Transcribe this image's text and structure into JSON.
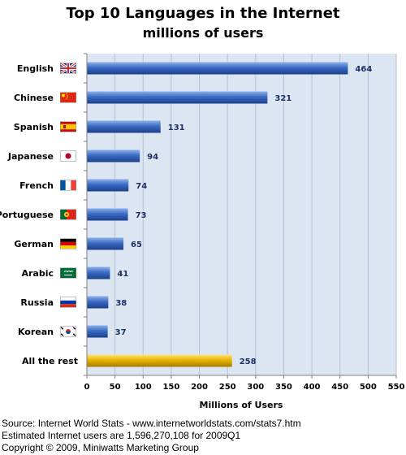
{
  "chart_data": {
    "type": "bar",
    "orientation": "horizontal",
    "title": "Top 10 Languages in the Internet",
    "subtitle": "millions of users",
    "xlabel": "Millions of Users",
    "ylabel": "",
    "xlim": [
      0,
      550
    ],
    "x_ticks": [
      "0",
      "50",
      "100",
      "150",
      "200",
      "250",
      "300",
      "350",
      "400",
      "450",
      "500",
      "550"
    ],
    "grid": true,
    "categories": [
      "English",
      "Chinese",
      "Spanish",
      "Japanese",
      "French",
      "Portuguese",
      "German",
      "Arabic",
      "Russia",
      "Korean",
      "All the rest"
    ],
    "values": [
      464,
      321,
      131,
      94,
      74,
      73,
      65,
      41,
      38,
      37,
      258
    ],
    "data_labels": [
      "464",
      "321",
      "131",
      "94",
      "74",
      "73",
      "65",
      "41",
      "38",
      "37",
      "258"
    ],
    "flags": [
      "uk-flag-icon",
      "china-flag-icon",
      "spain-flag-icon",
      "japan-flag-icon",
      "france-flag-icon",
      "portugal-flag-icon",
      "germany-flag-icon",
      "saudi-arabia-flag-icon",
      "russia-flag-icon",
      "south-korea-flag-icon",
      ""
    ],
    "colors": {
      "bar": "#3a6bc4",
      "highlight_bar": "#e8b400",
      "plot_background": "#dce6f2"
    }
  },
  "footer": {
    "source": "Source: Internet World Stats - www.internetworldstats.com/stats7.htm",
    "estimate": "Estimated Internet users are 1,596,270,108 for 2009Q1",
    "copyright": "Copyright © 2009, Miniwatts Marketing Group"
  }
}
